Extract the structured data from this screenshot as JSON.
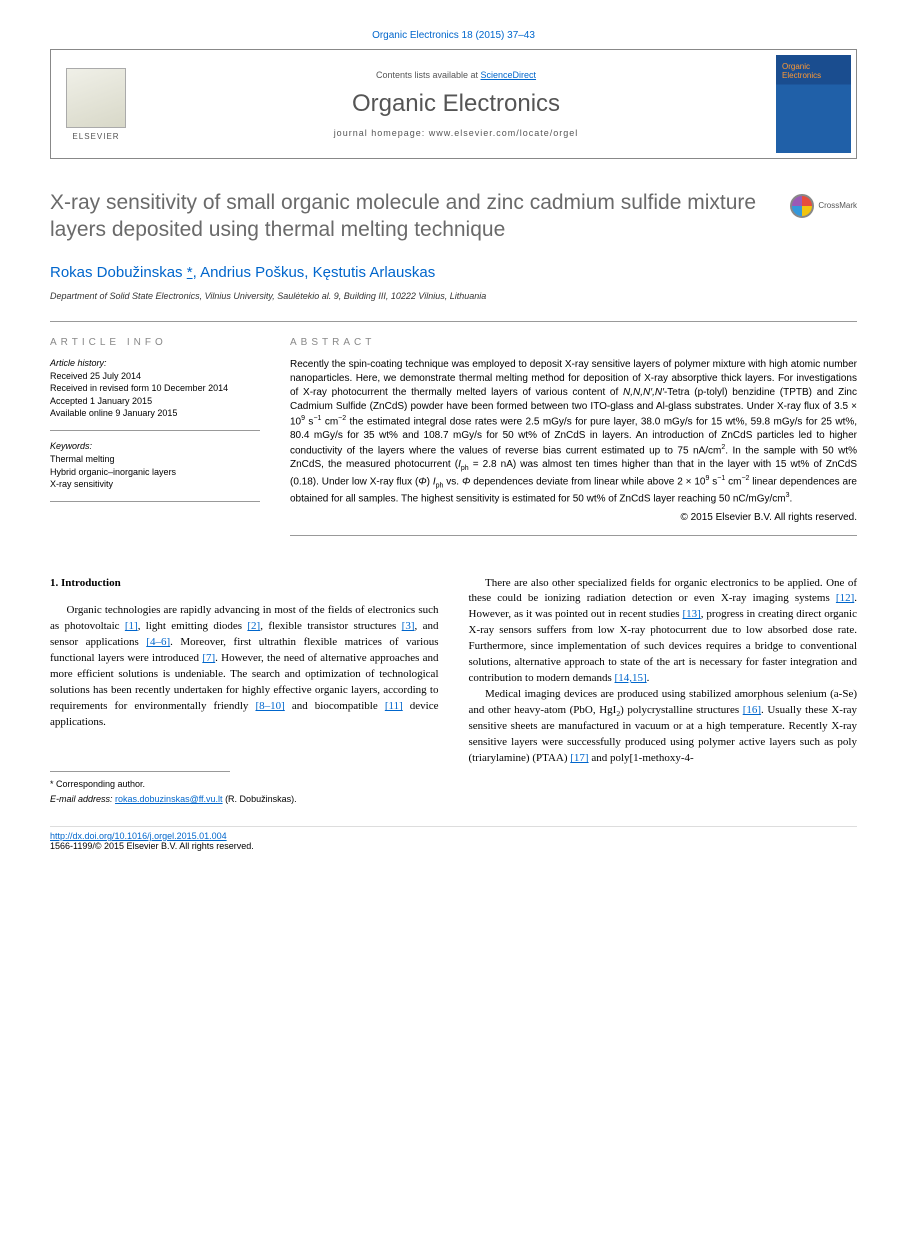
{
  "journal": {
    "citation": "Organic Electronics 18 (2015) 37–43",
    "contents_prefix": "Contents lists available at ",
    "contents_link": "ScienceDirect",
    "name": "Organic Electronics",
    "homepage_label": "journal homepage: www.elsevier.com/locate/orgel",
    "publisher": "ELSEVIER",
    "cover_label": "Organic Electronics"
  },
  "crossmark": "CrossMark",
  "article": {
    "title": "X-ray sensitivity of small organic molecule and zinc cadmium sulfide mixture layers deposited using thermal melting technique",
    "authors_html": "Rokas Dobužinskas *, Andrius Poškus, Kęstutis Arlauskas",
    "affiliation": "Department of Solid State Electronics, Vilnius University, Saulėtekio al. 9, Building III, 10222 Vilnius, Lithuania"
  },
  "info": {
    "heading": "ARTICLE INFO",
    "history_label": "Article history:",
    "history": [
      "Received 25 July 2014",
      "Received in revised form 10 December 2014",
      "Accepted 1 January 2015",
      "Available online 9 January 2015"
    ],
    "keywords_label": "Keywords:",
    "keywords": [
      "Thermal melting",
      "Hybrid organic–inorganic layers",
      "X-ray sensitivity"
    ]
  },
  "abstract": {
    "heading": "ABSTRACT",
    "text": "Recently the spin-coating technique was employed to deposit X-ray sensitive layers of polymer mixture with high atomic number nanoparticles. Here, we demonstrate thermal melting method for deposition of X-ray absorptive thick layers. For investigations of X-ray photocurrent the thermally melted layers of various content of N,N,N′,N′-Tetra (p-tolyl) benzidine (TPTB) and Zinc Cadmium Sulfide (ZnCdS) powder have been formed between two ITO-glass and Al-glass substrates. Under X-ray flux of 3.5 × 10⁹ s⁻¹ cm⁻² the estimated integral dose rates were 2.5 mGy/s for pure layer, 38.0 mGy/s for 15 wt%, 59.8 mGy/s for 25 wt%, 80.4 mGy/s for 35 wt% and 108.7 mGy/s for 50 wt% of ZnCdS in layers. An introduction of ZnCdS particles led to higher conductivity of the layers where the values of reverse bias current estimated up to 75 nA/cm². In the sample with 50 wt% ZnCdS, the measured photocurrent (Iph = 2.8 nA) was almost ten times higher than that in the layer with 15 wt% of ZnCdS (0.18). Under low X-ray flux (Φ) Iph vs. Φ dependences deviate from linear while above 2 × 10⁹ s⁻¹ cm⁻² linear dependences are obtained for all samples. The highest sensitivity is estimated for 50 wt% of ZnCdS layer reaching 50 nC/mGy/cm³.",
    "copyright": "© 2015 Elsevier B.V. All rights reserved."
  },
  "body": {
    "section1_heading": "1. Introduction",
    "col1_p1": "Organic technologies are rapidly advancing in most of the fields of electronics such as photovoltaic [1], light emitting diodes [2], flexible transistor structures [3], and sensor applications [4–6]. Moreover, first ultrathin flexible matrices of various functional layers were introduced [7]. However, the need of alternative approaches and more efficient solutions is undeniable. The search and optimization of technological solutions has been recently undertaken for highly effective organic layers, according to requirements for environmentally friendly [8–10] and biocompatible [11] device applications.",
    "col2_p1": "There are also other specialized fields for organic electronics to be applied. One of these could be ionizing radiation detection or even X-ray imaging systems [12]. However, as it was pointed out in recent studies [13], progress in creating direct organic X-ray sensors suffers from low X-ray photocurrent due to low absorbed dose rate. Furthermore, since implementation of such devices requires a bridge to conventional solutions, alternative approach to state of the art is necessary for faster integration and contribution to modern demands [14,15].",
    "col2_p2": "Medical imaging devices are produced using stabilized amorphous selenium (a-Se) and other heavy-atom (PbO, HgI₂) polycrystalline structures [16]. Usually these X-ray sensitive sheets are manufactured in vacuum or at a high temperature. Recently X-ray sensitive layers were successfully produced using polymer active layers such as poly (triarylamine) (PTAA) [17] and poly[1-methoxy-4-"
  },
  "footer": {
    "corresponding_label": "* Corresponding author.",
    "email_label": "E-mail address: ",
    "email": "rokas.dobuzinskas@ff.vu.lt",
    "email_suffix": " (R. Dobužinskas).",
    "doi": "http://dx.doi.org/10.1016/j.orgel.2015.01.004",
    "issn": "1566-1199/© 2015 Elsevier B.V. All rights reserved."
  },
  "refs": {
    "r1": "[1]",
    "r2": "[2]",
    "r3": "[3]",
    "r46": "[4–6]",
    "r7": "[7]",
    "r810": "[8–10]",
    "r11": "[11]",
    "r12": "[12]",
    "r13": "[13]",
    "r1415": "[14,15]",
    "r16": "[16]",
    "r17": "[17]"
  }
}
